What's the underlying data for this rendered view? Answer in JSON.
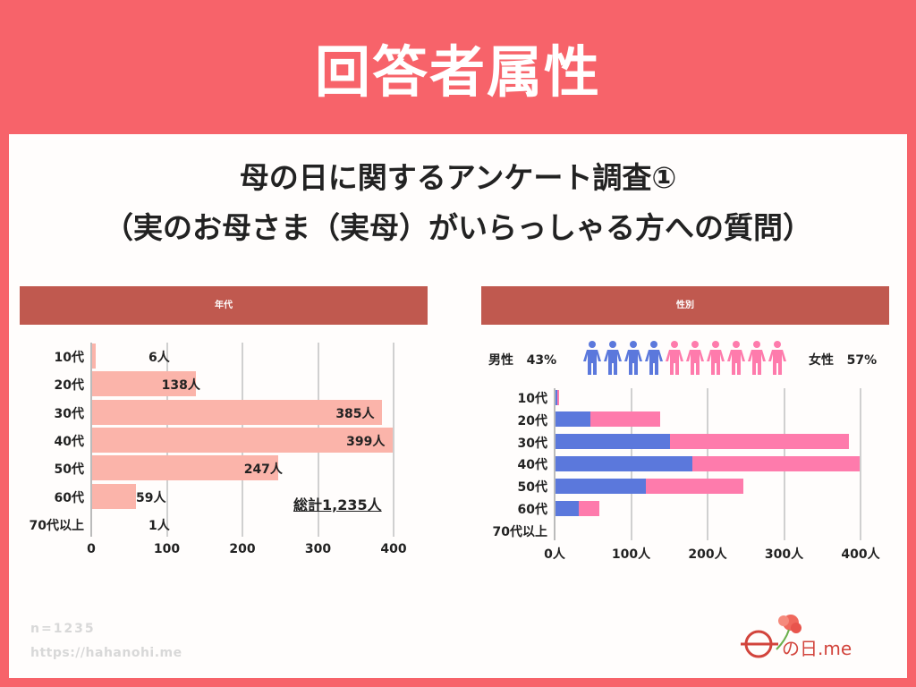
{
  "header": {
    "title": "回答者属性"
  },
  "subtitle": {
    "line1": "母の日に関するアンケート調査①",
    "line2": "（実のお母さま（実母）がいらっしゃる方への質問）"
  },
  "chart_data": [
    {
      "type": "bar",
      "title": "年代",
      "categories": [
        "10代",
        "20代",
        "30代",
        "40代",
        "50代",
        "60代",
        "70代以上"
      ],
      "values": [
        6,
        138,
        385,
        399,
        247,
        59,
        1
      ],
      "data_labels": [
        "6人",
        "138人",
        "385人",
        "399人",
        "247人",
        "59人",
        "1人"
      ],
      "xticks": [
        "0",
        "100",
        "200",
        "300",
        "400"
      ],
      "xlim": [
        0,
        400
      ],
      "grid": true,
      "annotation": "総計1,235人",
      "color": "#fbb4aa"
    },
    {
      "type": "bar",
      "stacked": true,
      "title": "性別",
      "categories": [
        "10代",
        "20代",
        "30代",
        "40代",
        "50代",
        "60代",
        "70代以上"
      ],
      "series": [
        {
          "name": "男性",
          "values": [
            3,
            47,
            151,
            180,
            119,
            32,
            0
          ],
          "color": "#5b78dc"
        },
        {
          "name": "女性",
          "values": [
            3,
            91,
            234,
            219,
            128,
            27,
            1
          ],
          "color": "#fe7bac"
        }
      ],
      "xticks": [
        "0人",
        "100人",
        "200人",
        "300人",
        "400人"
      ],
      "xlim": [
        0,
        400
      ],
      "grid": true,
      "legend": {
        "male_label": "男性",
        "male_pct": "43%",
        "female_label": "女性",
        "female_pct": "57%",
        "male_icons": 4,
        "female_icons": 6
      }
    }
  ],
  "footer": {
    "n": "n=1235",
    "url": "https://hahanohi.me"
  },
  "logo": {
    "text": "母の日.me"
  },
  "colors": {
    "background": "#f7636a",
    "header_bar": "#c0594f"
  }
}
